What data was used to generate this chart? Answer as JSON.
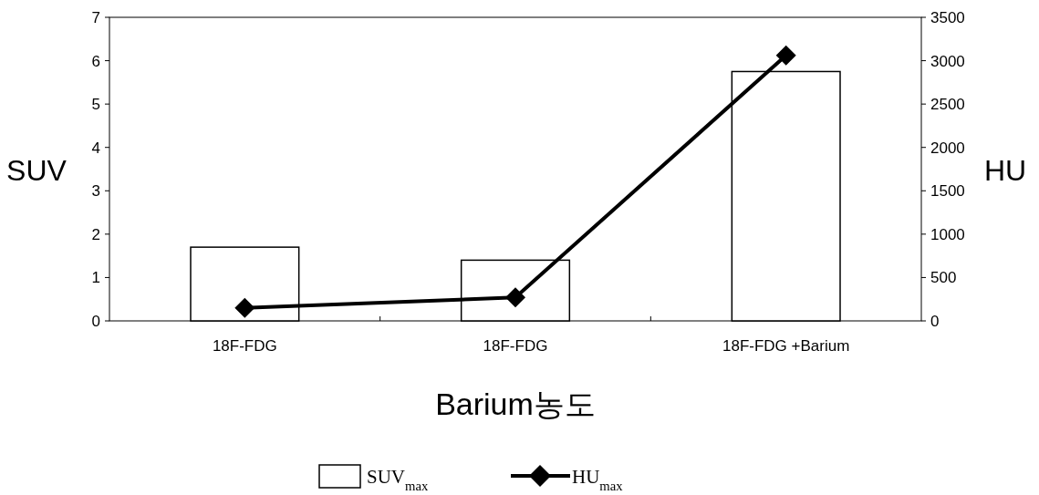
{
  "chart_data": {
    "type": "bar",
    "xlabel": "Barium농도",
    "ylabel": "SUV",
    "y2label": "HU",
    "categories": [
      "18F-FDG",
      "18F-FDG",
      "18F-FDG +Barium"
    ],
    "series": [
      {
        "name": "SUV$_{max}$",
        "color": "#ffffff",
        "values": [
          1.7,
          1.4,
          5.75
        ]
      },
      {
        "name": "HU$_{max}$",
        "type": "line",
        "axis": "y2",
        "color": "#000000",
        "marker": "diamond",
        "values": [
          150,
          270,
          3060
        ]
      }
    ],
    "ylim": [
      0,
      7
    ],
    "yticks": [
      0,
      1,
      2,
      3,
      4,
      5,
      6,
      7
    ],
    "y2lim": [
      0,
      3500
    ],
    "y2ticks": [
      0,
      500,
      1000,
      1500,
      2000,
      2500,
      3000,
      3500
    ],
    "grid": false,
    "legend": "bottom"
  }
}
